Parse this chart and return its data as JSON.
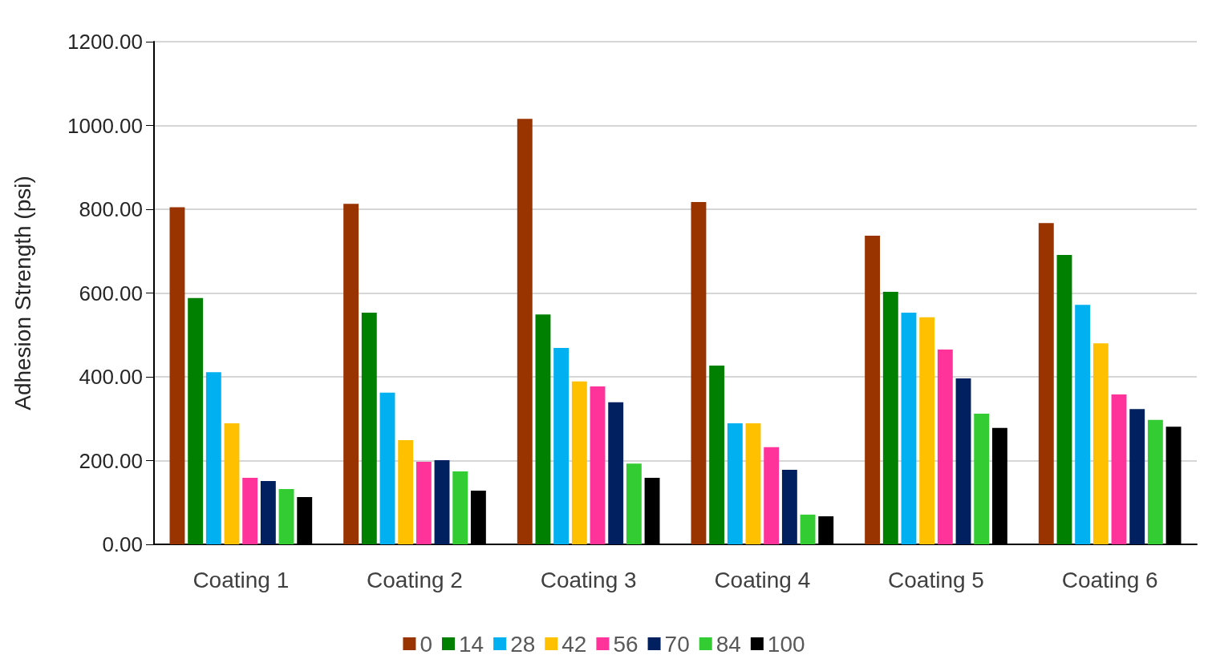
{
  "chart_data": {
    "type": "bar",
    "ylabel": "Adhesion Strength (psi)",
    "categories": [
      "Coating 1",
      "Coating 2",
      "Coating 3",
      "Coating 4",
      "Coating 5",
      "Coating 6"
    ],
    "series": [
      {
        "name": "0",
        "color": "#993300",
        "values": [
          805,
          813,
          1016,
          817,
          737,
          767
        ]
      },
      {
        "name": "14",
        "color": "#008000",
        "values": [
          588,
          553,
          549,
          427,
          603,
          691
        ]
      },
      {
        "name": "28",
        "color": "#00b0f0",
        "values": [
          411,
          362,
          469,
          289,
          553,
          572
        ]
      },
      {
        "name": "42",
        "color": "#ffc000",
        "values": [
          289,
          249,
          389,
          289,
          542,
          480
        ]
      },
      {
        "name": "56",
        "color": "#ff3399",
        "values": [
          159,
          197,
          377,
          232,
          465,
          358
        ]
      },
      {
        "name": "70",
        "color": "#002060",
        "values": [
          151,
          201,
          339,
          178,
          396,
          323
        ]
      },
      {
        "name": "84",
        "color": "#33cc33",
        "values": [
          132,
          174,
          193,
          71,
          312,
          297
        ]
      },
      {
        "name": "100",
        "color": "#000000",
        "values": [
          113,
          128,
          159,
          67,
          278,
          281
        ]
      }
    ],
    "ylim": [
      0,
      1200
    ],
    "yticks": [
      {
        "value": 0,
        "label": "0.00"
      },
      {
        "value": 200,
        "label": "200.00"
      },
      {
        "value": 400,
        "label": "400.00"
      },
      {
        "value": 600,
        "label": "600.00"
      },
      {
        "value": 800,
        "label": "800.00"
      },
      {
        "value": 1000,
        "label": "1000.00"
      },
      {
        "value": 1200,
        "label": "1200.00"
      }
    ],
    "grid": "y",
    "legend": "bottom"
  }
}
